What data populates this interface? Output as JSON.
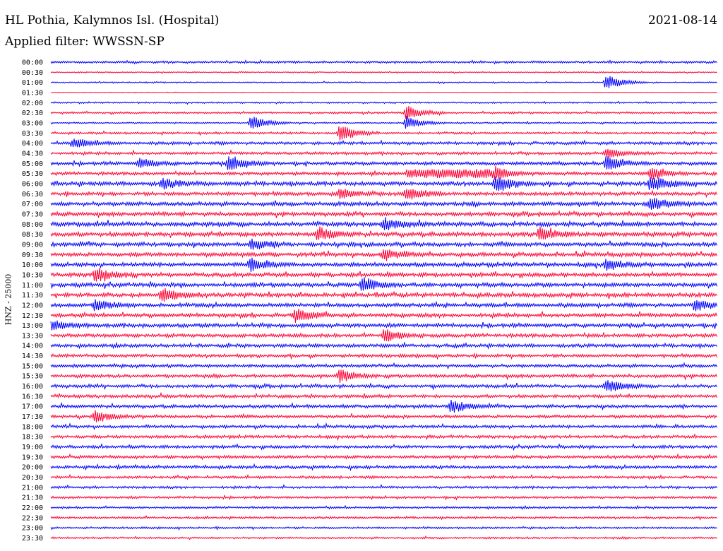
{
  "header": {
    "station": "HL Pothia, Kalymnos Isl. (Hospital)",
    "date": "2021-08-14",
    "filter": "Applied filter: WWSSN-SP"
  },
  "chart_data": {
    "type": "line",
    "title": "HL Pothia, Kalymnos Isl. (Hospital)",
    "ylabel": "HNZ - 25000",
    "xlabel": "",
    "grid": false,
    "colors": [
      "#0000ff",
      "#ff0033"
    ],
    "row_labels": [
      "00:00",
      "00:30",
      "01:00",
      "01:30",
      "02:00",
      "02:30",
      "03:00",
      "03:30",
      "04:00",
      "04:30",
      "05:00",
      "05:30",
      "06:00",
      "06:30",
      "07:00",
      "07:30",
      "08:00",
      "08:30",
      "09:00",
      "09:30",
      "10:00",
      "10:30",
      "11:00",
      "11:30",
      "12:00",
      "12:30",
      "13:00",
      "13:30",
      "14:00",
      "14:30",
      "15:00",
      "15:30",
      "16:00",
      "16:30",
      "17:00",
      "17:30",
      "18:00",
      "18:30",
      "19:00",
      "19:30",
      "20:00",
      "20:30",
      "21:00",
      "21:30",
      "22:00",
      "22:30",
      "23:00",
      "23:30"
    ],
    "noise_level": [
      0.5,
      0.3,
      0.3,
      0.15,
      0.35,
      0.45,
      0.35,
      0.5,
      0.7,
      0.65,
      0.8,
      0.75,
      0.95,
      0.85,
      0.95,
      0.9,
      1.0,
      1.0,
      0.95,
      0.95,
      0.95,
      0.95,
      0.95,
      0.95,
      0.9,
      0.9,
      0.9,
      0.85,
      0.8,
      0.75,
      0.75,
      0.75,
      0.75,
      0.75,
      0.75,
      0.7,
      0.7,
      0.7,
      0.7,
      0.7,
      0.7,
      0.6,
      0.55,
      0.55,
      0.5,
      0.5,
      0.45,
      0.45
    ],
    "events": [
      {
        "row": 2,
        "minute": 25,
        "amplitude": 1.6
      },
      {
        "row": 5,
        "minute": 16,
        "amplitude": 1.4
      },
      {
        "row": 6,
        "minute": 9,
        "amplitude": 1.6
      },
      {
        "row": 6,
        "minute": 16,
        "amplitude": 1.4
      },
      {
        "row": 7,
        "minute": 13,
        "amplitude": 1.8
      },
      {
        "row": 8,
        "minute": 1,
        "amplitude": 1.0
      },
      {
        "row": 9,
        "minute": 25,
        "amplitude": 1.0
      },
      {
        "row": 10,
        "minute": 4,
        "amplitude": 1.0
      },
      {
        "row": 10,
        "minute": 8,
        "amplitude": 1.6
      },
      {
        "row": 10,
        "minute": 25,
        "amplitude": 1.6
      },
      {
        "row": 11,
        "minute": 20,
        "amplitude": 1.3
      },
      {
        "row": 11,
        "minute": 27,
        "amplitude": 1.2
      },
      {
        "row": 12,
        "minute": 5,
        "amplitude": 1.0
      },
      {
        "row": 12,
        "minute": 20,
        "amplitude": 1.8
      },
      {
        "row": 12,
        "minute": 27,
        "amplitude": 1.6
      },
      {
        "row": 13,
        "minute": 13,
        "amplitude": 1.0
      },
      {
        "row": 13,
        "minute": 16,
        "amplitude": 1.4
      },
      {
        "row": 14,
        "minute": 27,
        "amplitude": 1.3
      },
      {
        "row": 16,
        "minute": 15,
        "amplitude": 1.2
      },
      {
        "row": 17,
        "minute": 12,
        "amplitude": 1.3
      },
      {
        "row": 17,
        "minute": 22,
        "amplitude": 1.3
      },
      {
        "row": 18,
        "minute": 9,
        "amplitude": 1.2
      },
      {
        "row": 19,
        "minute": 15,
        "amplitude": 1.2
      },
      {
        "row": 20,
        "minute": 9,
        "amplitude": 1.2
      },
      {
        "row": 20,
        "minute": 25,
        "amplitude": 1.0
      },
      {
        "row": 21,
        "minute": 2,
        "amplitude": 1.5
      },
      {
        "row": 22,
        "minute": 14,
        "amplitude": 1.5
      },
      {
        "row": 23,
        "minute": 5,
        "amplitude": 1.5
      },
      {
        "row": 24,
        "minute": 2,
        "amplitude": 1.2
      },
      {
        "row": 24,
        "minute": 29,
        "amplitude": 1.2
      },
      {
        "row": 25,
        "minute": 11,
        "amplitude": 1.3
      },
      {
        "row": 26,
        "minute": 0,
        "amplitude": 1.0
      },
      {
        "row": 27,
        "minute": 15,
        "amplitude": 1.4
      },
      {
        "row": 31,
        "minute": 13,
        "amplitude": 1.3
      },
      {
        "row": 32,
        "minute": 25,
        "amplitude": 1.3
      },
      {
        "row": 34,
        "minute": 18,
        "amplitude": 1.3
      },
      {
        "row": 35,
        "minute": 2,
        "amplitude": 1.0
      }
    ],
    "long_burst": {
      "row": 11,
      "start_minute": 16,
      "end_minute": 20,
      "amplitude": 1.2
    }
  }
}
